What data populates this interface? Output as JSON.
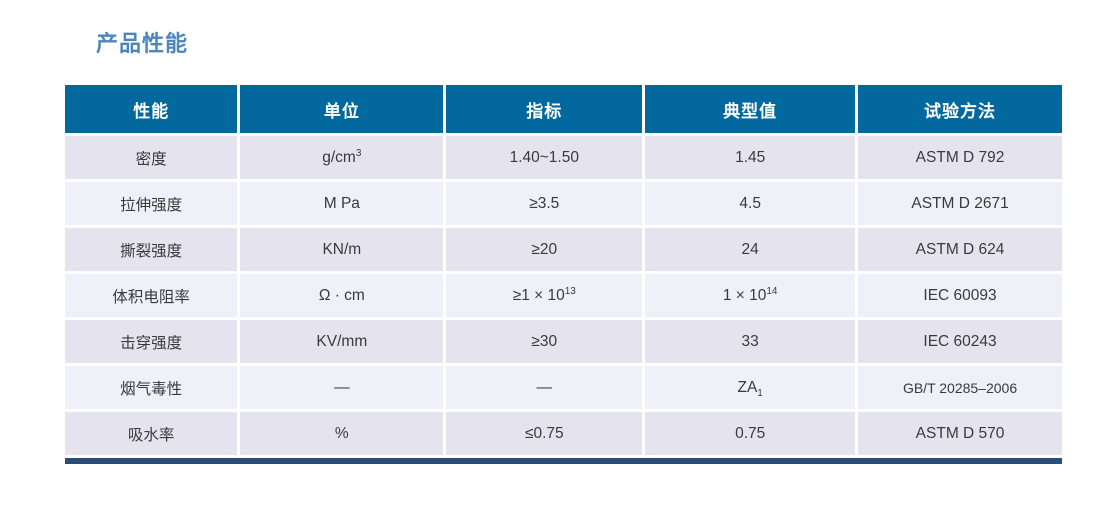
{
  "title": "产品性能",
  "theme": {
    "title_color": "#4c86bd",
    "header_bg": "#02689e",
    "header_text": "#ffffff",
    "row_odd_bg": "#e5e4ee",
    "row_even_bg": "#eef1f8",
    "body_text": "#3a3a3a",
    "bottom_bar": "#2a4c7c"
  },
  "table": {
    "columns": [
      "性能",
      "单位",
      "指标",
      "典型值",
      "试验方法"
    ],
    "rows": [
      {
        "cells": [
          {
            "t": "密度"
          },
          {
            "t": "g/cm",
            "sup": "3"
          },
          {
            "t": "1.40~1.50"
          },
          {
            "t": "1.45"
          },
          {
            "t": "ASTM D 792"
          }
        ]
      },
      {
        "cells": [
          {
            "t": "拉伸强度"
          },
          {
            "t": "M Pa"
          },
          {
            "t": "≥3.5"
          },
          {
            "t": "4.5"
          },
          {
            "t": "ASTM D 2671"
          }
        ]
      },
      {
        "cells": [
          {
            "t": "撕裂强度"
          },
          {
            "t": "KN/m"
          },
          {
            "t": "≥20"
          },
          {
            "t": "24"
          },
          {
            "t": "ASTM D 624"
          }
        ]
      },
      {
        "cells": [
          {
            "t": "体积电阻率"
          },
          {
            "t": "Ω · cm"
          },
          {
            "t": "≥1 × 10",
            "sup": "13"
          },
          {
            "t": "1 × 10",
            "sup": "14"
          },
          {
            "t": "IEC 60093"
          }
        ]
      },
      {
        "cells": [
          {
            "t": "击穿强度"
          },
          {
            "t": "KV/mm"
          },
          {
            "t": "≥30"
          },
          {
            "t": "33"
          },
          {
            "t": "IEC 60243"
          }
        ]
      },
      {
        "cells": [
          {
            "t": "烟气毒性"
          },
          {
            "t": "—"
          },
          {
            "t": "—"
          },
          {
            "t": "ZA",
            "sub": "1"
          },
          {
            "t": "GB/T 20285–2006"
          }
        ]
      },
      {
        "cells": [
          {
            "t": "吸水率"
          },
          {
            "t": "%"
          },
          {
            "t": "≤0.75"
          },
          {
            "t": "0.75"
          },
          {
            "t": "ASTM D 570"
          }
        ]
      }
    ]
  }
}
